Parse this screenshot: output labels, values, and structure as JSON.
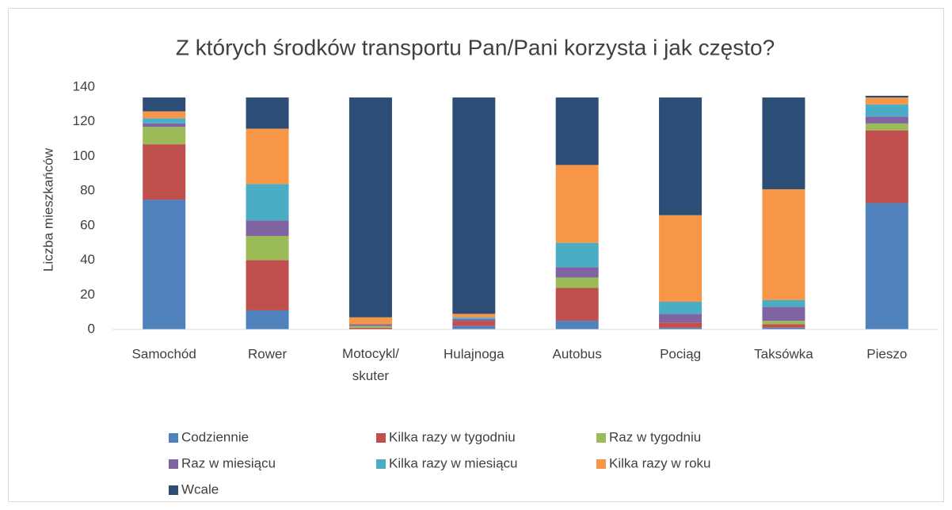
{
  "chart_data": {
    "type": "stacked_bar",
    "title": "Z których środków transportu Pan/Pani korzysta i jak często?",
    "y_label": "Liczba mieszkańców",
    "categories": [
      "Samochód",
      "Rower",
      "Motocykl/ skuter",
      "Hulajnoga",
      "Autobus",
      "Pociąg",
      "Taksówka",
      "Pieszo"
    ],
    "series": [
      {
        "name": "Codziennie",
        "color": "#4f81bd",
        "values": [
          75,
          11,
          0,
          2,
          5,
          1,
          1,
          73
        ]
      },
      {
        "name": "Kilka razy w tygodniu",
        "color": "#c0504d",
        "values": [
          32,
          29,
          1,
          3,
          19,
          3,
          2,
          42
        ]
      },
      {
        "name": "Raz w tygodniu",
        "color": "#9bbb59",
        "values": [
          10,
          14,
          1,
          0,
          6,
          0,
          2,
          4
        ]
      },
      {
        "name": "Raz w miesiącu",
        "color": "#8064a2",
        "values": [
          2,
          9,
          1,
          1,
          6,
          5,
          8,
          4
        ]
      },
      {
        "name": "Kilka razy w miesiącu",
        "color": "#4bacc6",
        "values": [
          3,
          21,
          0,
          1,
          14,
          7,
          4,
          7
        ]
      },
      {
        "name": "Kilka razy w roku",
        "color": "#f79646",
        "values": [
          4,
          32,
          4,
          2,
          45,
          50,
          64,
          4
        ]
      },
      {
        "name": "Wcale",
        "color": "#2c4d75",
        "values": [
          8,
          18,
          127,
          125,
          39,
          68,
          53,
          1
        ]
      }
    ],
    "ylim": [
      0,
      140
    ],
    "yticks": [
      0,
      20,
      40,
      60,
      80,
      100,
      120,
      140
    ],
    "grid": false,
    "legend": "bottom"
  }
}
